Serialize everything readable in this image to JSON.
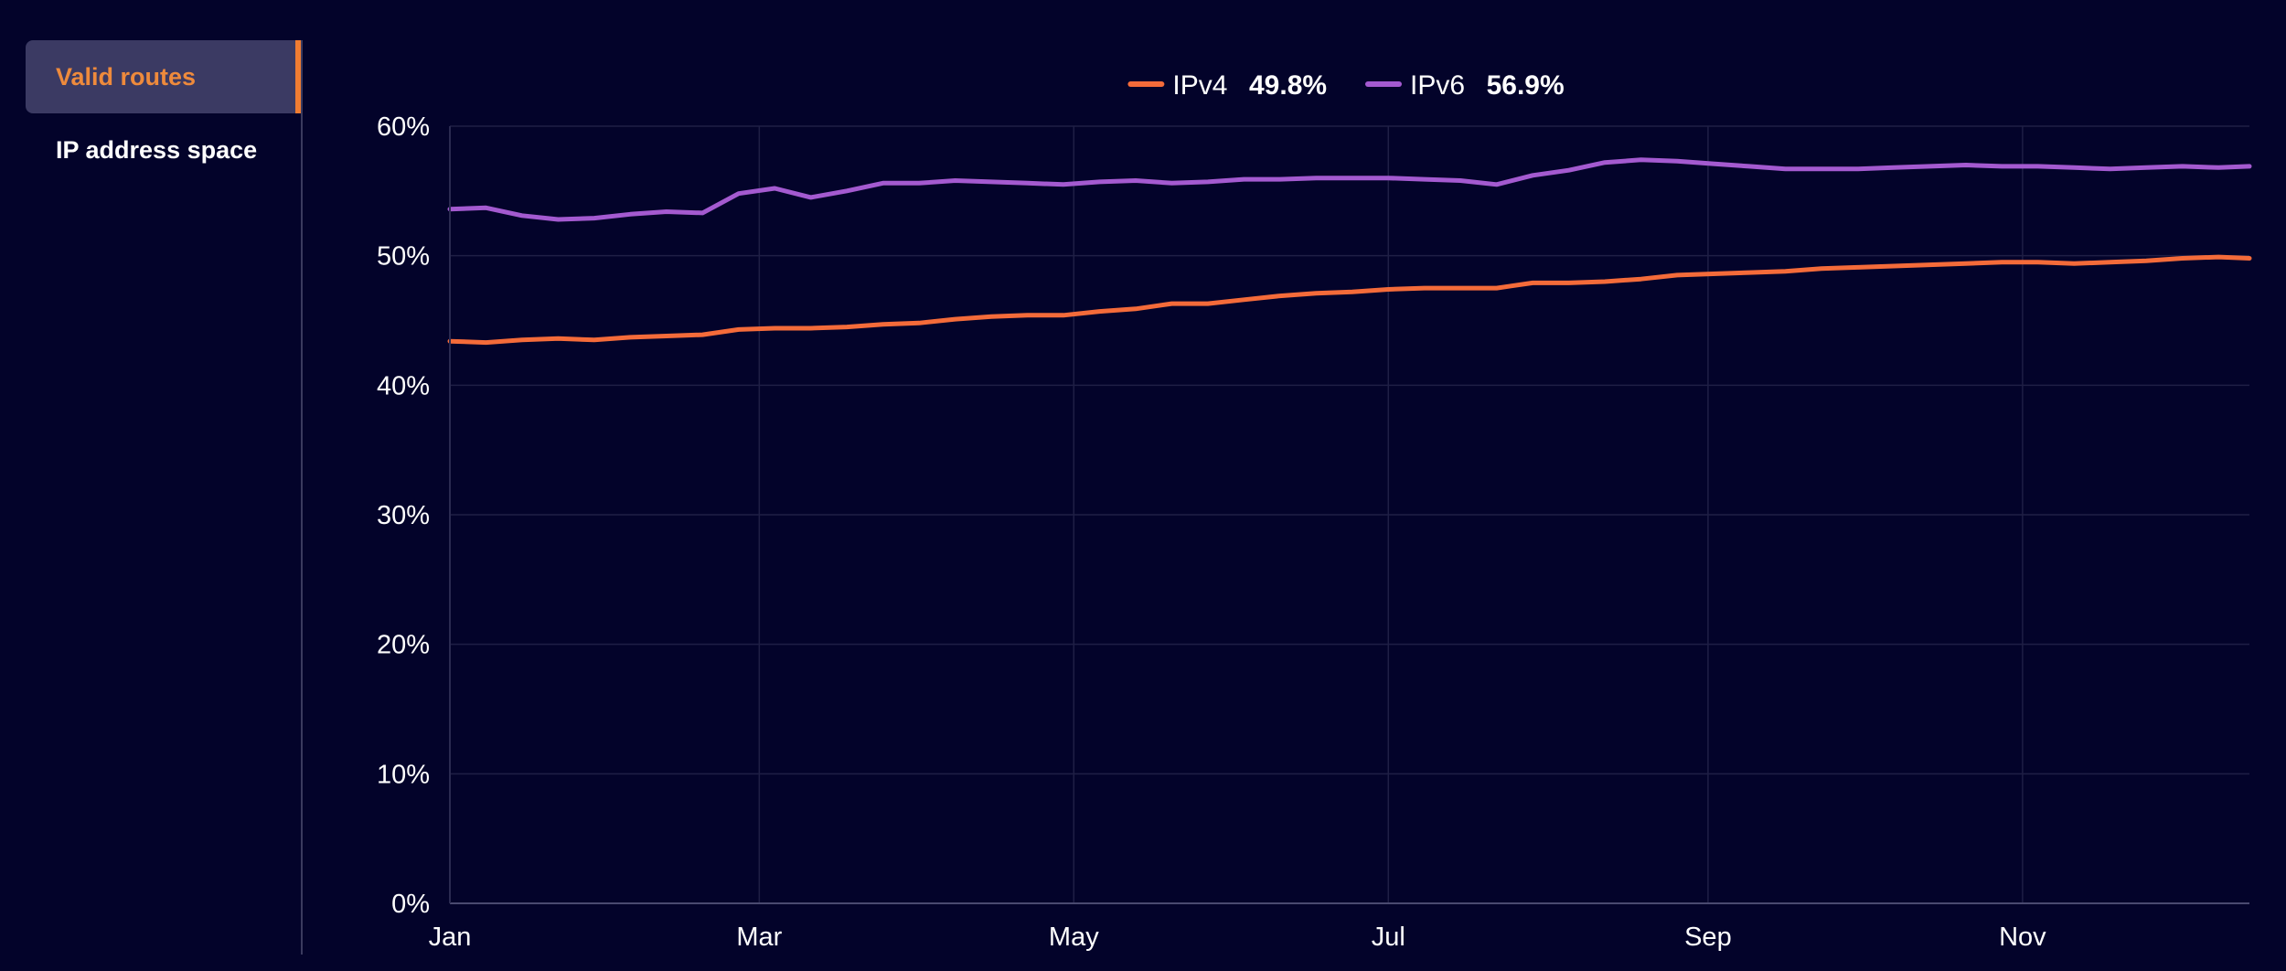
{
  "sidebar": {
    "items": [
      {
        "label": "Valid routes",
        "active": true
      },
      {
        "label": "IP address space",
        "active": false
      }
    ]
  },
  "colors": {
    "background": "#03032a",
    "grid": "#1f1f45",
    "ipv4": "#f46b3a",
    "ipv6": "#a45ad0",
    "accent": "#f07c32"
  },
  "legend": [
    {
      "name": "IPv4",
      "value": "49.8%",
      "color": "#f46b3a"
    },
    {
      "name": "IPv6",
      "value": "56.9%",
      "color": "#a45ad0"
    }
  ],
  "chart_data": {
    "type": "line",
    "title": "",
    "xlabel": "",
    "ylabel": "",
    "y_ticks": [
      "0%",
      "10%",
      "20%",
      "30%",
      "40%",
      "50%",
      "60%"
    ],
    "ylim": [
      0,
      60
    ],
    "x_ticks": [
      "Jan",
      "Mar",
      "May",
      "Jul",
      "Sep",
      "Nov"
    ],
    "x_tick_dates": [
      "2024-01-01",
      "2024-03-01",
      "2024-05-01",
      "2024-07-01",
      "2024-09-01",
      "2024-11-01"
    ],
    "xlim": [
      "2024-01-01",
      "2024-12-15"
    ],
    "grid": true,
    "legend_position": "top-center",
    "series": [
      {
        "name": "IPv4",
        "color": "#f46b3a",
        "points": [
          [
            "2024-01-01",
            43.4
          ],
          [
            "2024-01-08",
            43.3
          ],
          [
            "2024-01-15",
            43.5
          ],
          [
            "2024-01-22",
            43.6
          ],
          [
            "2024-01-29",
            43.5
          ],
          [
            "2024-02-05",
            43.7
          ],
          [
            "2024-02-12",
            43.8
          ],
          [
            "2024-02-19",
            43.9
          ],
          [
            "2024-02-26",
            44.3
          ],
          [
            "2024-03-04",
            44.4
          ],
          [
            "2024-03-11",
            44.4
          ],
          [
            "2024-03-18",
            44.5
          ],
          [
            "2024-03-25",
            44.7
          ],
          [
            "2024-04-01",
            44.8
          ],
          [
            "2024-04-08",
            45.1
          ],
          [
            "2024-04-15",
            45.3
          ],
          [
            "2024-04-22",
            45.4
          ],
          [
            "2024-04-29",
            45.4
          ],
          [
            "2024-05-06",
            45.7
          ],
          [
            "2024-05-13",
            45.9
          ],
          [
            "2024-05-20",
            46.3
          ],
          [
            "2024-05-27",
            46.3
          ],
          [
            "2024-06-03",
            46.6
          ],
          [
            "2024-06-10",
            46.9
          ],
          [
            "2024-06-17",
            47.1
          ],
          [
            "2024-06-24",
            47.2
          ],
          [
            "2024-07-01",
            47.4
          ],
          [
            "2024-07-08",
            47.5
          ],
          [
            "2024-07-15",
            47.5
          ],
          [
            "2024-07-22",
            47.5
          ],
          [
            "2024-07-29",
            47.9
          ],
          [
            "2024-08-05",
            47.9
          ],
          [
            "2024-08-12",
            48.0
          ],
          [
            "2024-08-19",
            48.2
          ],
          [
            "2024-08-26",
            48.5
          ],
          [
            "2024-09-02",
            48.6
          ],
          [
            "2024-09-09",
            48.7
          ],
          [
            "2024-09-16",
            48.8
          ],
          [
            "2024-09-23",
            49.0
          ],
          [
            "2024-09-30",
            49.1
          ],
          [
            "2024-10-07",
            49.2
          ],
          [
            "2024-10-14",
            49.3
          ],
          [
            "2024-10-21",
            49.4
          ],
          [
            "2024-10-28",
            49.5
          ],
          [
            "2024-11-04",
            49.5
          ],
          [
            "2024-11-11",
            49.4
          ],
          [
            "2024-11-18",
            49.5
          ],
          [
            "2024-11-25",
            49.6
          ],
          [
            "2024-12-02",
            49.8
          ],
          [
            "2024-12-09",
            49.9
          ],
          [
            "2024-12-15",
            49.8
          ]
        ]
      },
      {
        "name": "IPv6",
        "color": "#a45ad0",
        "points": [
          [
            "2024-01-01",
            53.6
          ],
          [
            "2024-01-08",
            53.7
          ],
          [
            "2024-01-15",
            53.1
          ],
          [
            "2024-01-22",
            52.8
          ],
          [
            "2024-01-29",
            52.9
          ],
          [
            "2024-02-05",
            53.2
          ],
          [
            "2024-02-12",
            53.4
          ],
          [
            "2024-02-19",
            53.3
          ],
          [
            "2024-02-26",
            54.8
          ],
          [
            "2024-03-04",
            55.2
          ],
          [
            "2024-03-11",
            54.5
          ],
          [
            "2024-03-18",
            55.0
          ],
          [
            "2024-03-25",
            55.6
          ],
          [
            "2024-04-01",
            55.6
          ],
          [
            "2024-04-08",
            55.8
          ],
          [
            "2024-04-15",
            55.7
          ],
          [
            "2024-04-22",
            55.6
          ],
          [
            "2024-04-29",
            55.5
          ],
          [
            "2024-05-06",
            55.7
          ],
          [
            "2024-05-13",
            55.8
          ],
          [
            "2024-05-20",
            55.6
          ],
          [
            "2024-05-27",
            55.7
          ],
          [
            "2024-06-03",
            55.9
          ],
          [
            "2024-06-10",
            55.9
          ],
          [
            "2024-06-17",
            56.0
          ],
          [
            "2024-06-24",
            56.0
          ],
          [
            "2024-07-01",
            56.0
          ],
          [
            "2024-07-08",
            55.9
          ],
          [
            "2024-07-15",
            55.8
          ],
          [
            "2024-07-22",
            55.5
          ],
          [
            "2024-07-29",
            56.2
          ],
          [
            "2024-08-05",
            56.6
          ],
          [
            "2024-08-12",
            57.2
          ],
          [
            "2024-08-19",
            57.4
          ],
          [
            "2024-08-26",
            57.3
          ],
          [
            "2024-09-02",
            57.1
          ],
          [
            "2024-09-09",
            56.9
          ],
          [
            "2024-09-16",
            56.7
          ],
          [
            "2024-09-23",
            56.7
          ],
          [
            "2024-09-30",
            56.7
          ],
          [
            "2024-10-07",
            56.8
          ],
          [
            "2024-10-14",
            56.9
          ],
          [
            "2024-10-21",
            57.0
          ],
          [
            "2024-10-28",
            56.9
          ],
          [
            "2024-11-04",
            56.9
          ],
          [
            "2024-11-11",
            56.8
          ],
          [
            "2024-11-18",
            56.7
          ],
          [
            "2024-11-25",
            56.8
          ],
          [
            "2024-12-02",
            56.9
          ],
          [
            "2024-12-09",
            56.8
          ],
          [
            "2024-12-15",
            56.9
          ]
        ]
      }
    ]
  }
}
